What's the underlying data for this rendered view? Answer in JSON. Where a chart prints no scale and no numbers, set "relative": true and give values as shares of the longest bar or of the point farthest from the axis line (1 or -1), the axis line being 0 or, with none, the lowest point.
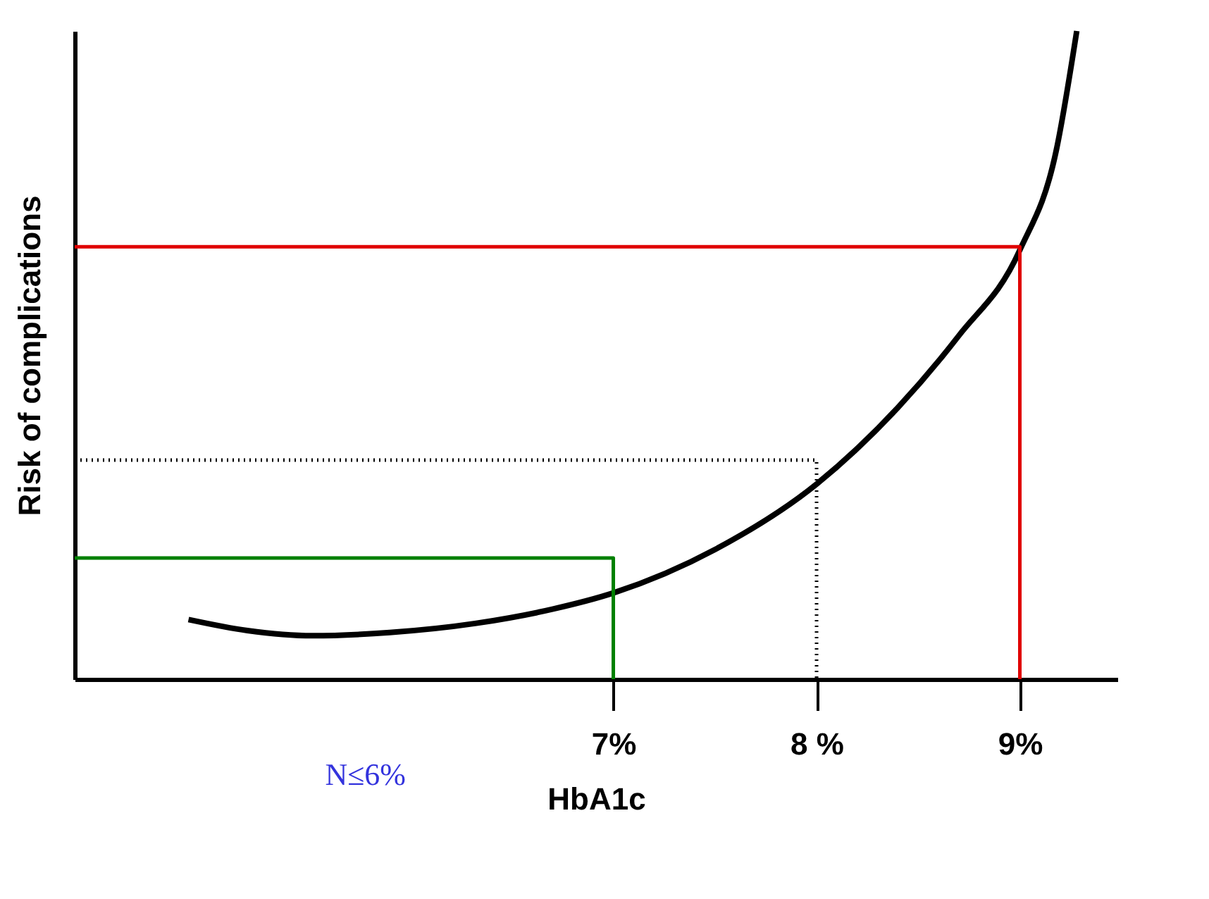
{
  "chart_data": {
    "type": "line",
    "relative": true,
    "xlabel": "HbA1c",
    "ylabel": "Risk of complications",
    "xlim": [
      4.35,
      9.48
    ],
    "xticks": [
      {
        "value": 7,
        "label": "7%"
      },
      {
        "value": 8,
        "label": "8 %"
      },
      {
        "value": 9,
        "label": "9%"
      }
    ],
    "series": [
      {
        "color": "#000000",
        "line_style": "solid",
        "x": [
          4.91,
          5.2,
          5.52,
          5.9,
          6.32,
          6.7,
          7,
          7.5,
          8,
          8.4,
          8.7,
          9,
          9.18,
          9.28
        ],
        "values": [
          0.092,
          0.075,
          0.067,
          0.072,
          0.086,
          0.108,
          0.133,
          0.2,
          0.301,
          0.419,
          0.53,
          0.662,
          0.817,
          1
        ]
      },
      {
        "color": "#008000",
        "line_style": "solid",
        "x": [
          4.35,
          7,
          7
        ],
        "values": [
          0.187,
          0.187,
          0
        ]
      },
      {
        "color": "#000000",
        "line_style": "dotted",
        "x": [
          4.35,
          8,
          8
        ],
        "values": [
          0.338,
          0.338,
          0
        ]
      },
      {
        "color": "#e00000",
        "line_style": "solid",
        "x": [
          4.35,
          9,
          9
        ],
        "values": [
          0.667,
          0.667,
          0
        ]
      }
    ],
    "annotations": [
      "N≤6%"
    ],
    "grid": false,
    "marker": "none"
  }
}
